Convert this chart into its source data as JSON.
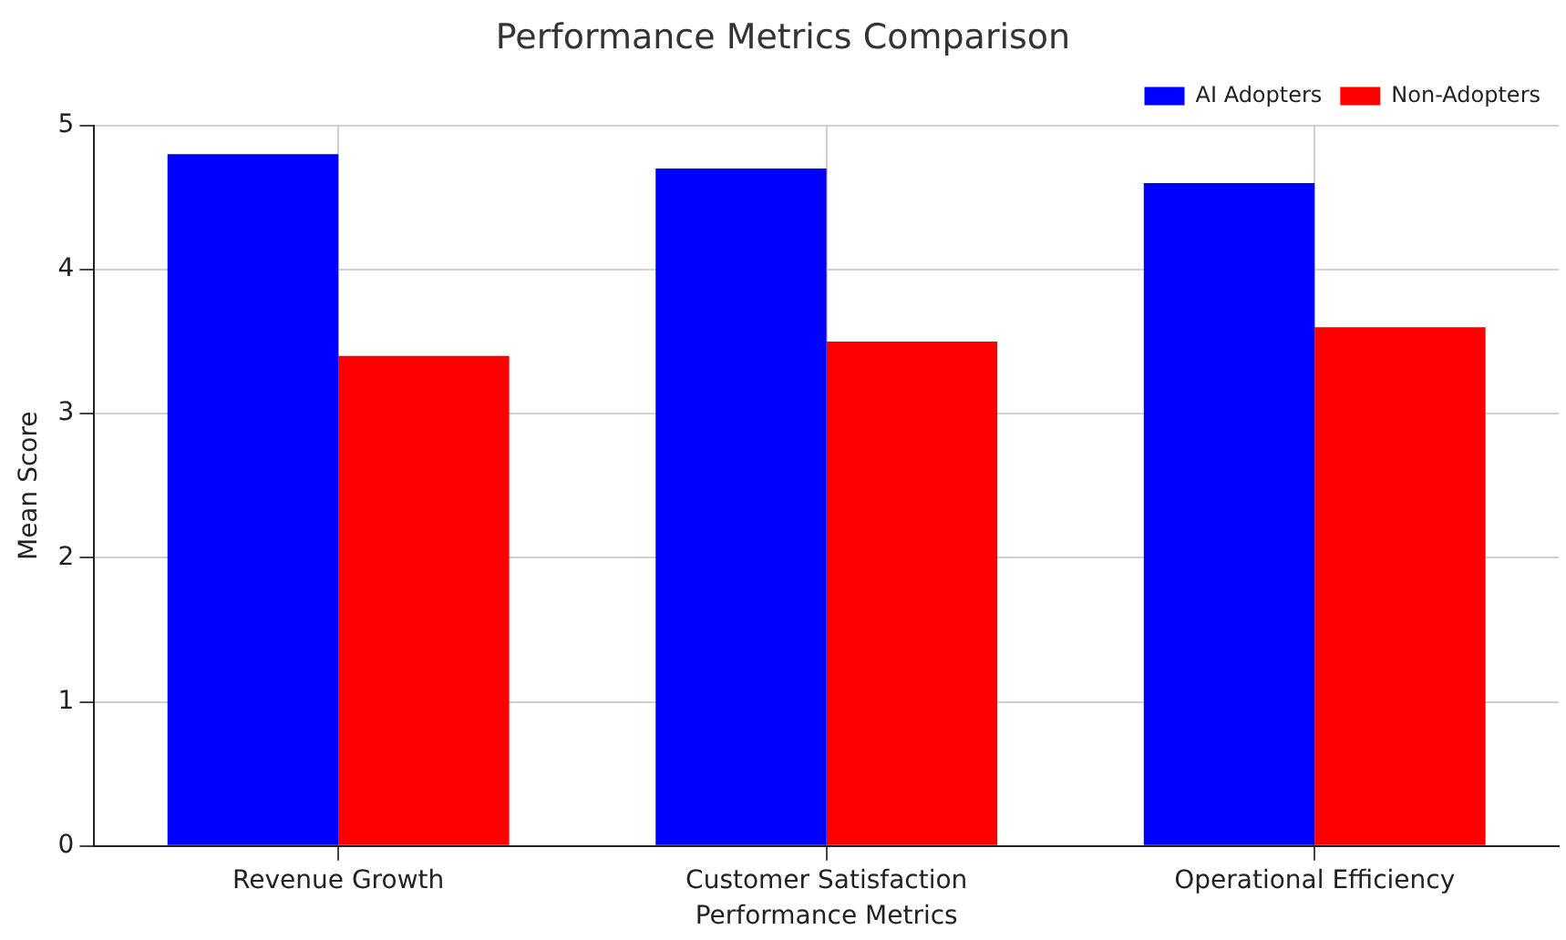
{
  "chart_data": {
    "type": "bar",
    "title": "Performance Metrics Comparison",
    "xlabel": "Performance Metrics",
    "ylabel": "Mean Score",
    "categories": [
      "Revenue Growth",
      "Customer Satisfaction",
      "Operational Efficiency"
    ],
    "series": [
      {
        "name": "AI Adopters",
        "color": "#0000ff",
        "values": [
          4.8,
          4.7,
          4.6
        ]
      },
      {
        "name": "Non-Adopters",
        "color": "#ff0000",
        "values": [
          3.4,
          3.5,
          3.6
        ]
      }
    ],
    "ylim": [
      0,
      5
    ],
    "yticks": [
      0,
      1,
      2,
      3,
      4,
      5
    ],
    "grid": true,
    "legend": "top right"
  }
}
